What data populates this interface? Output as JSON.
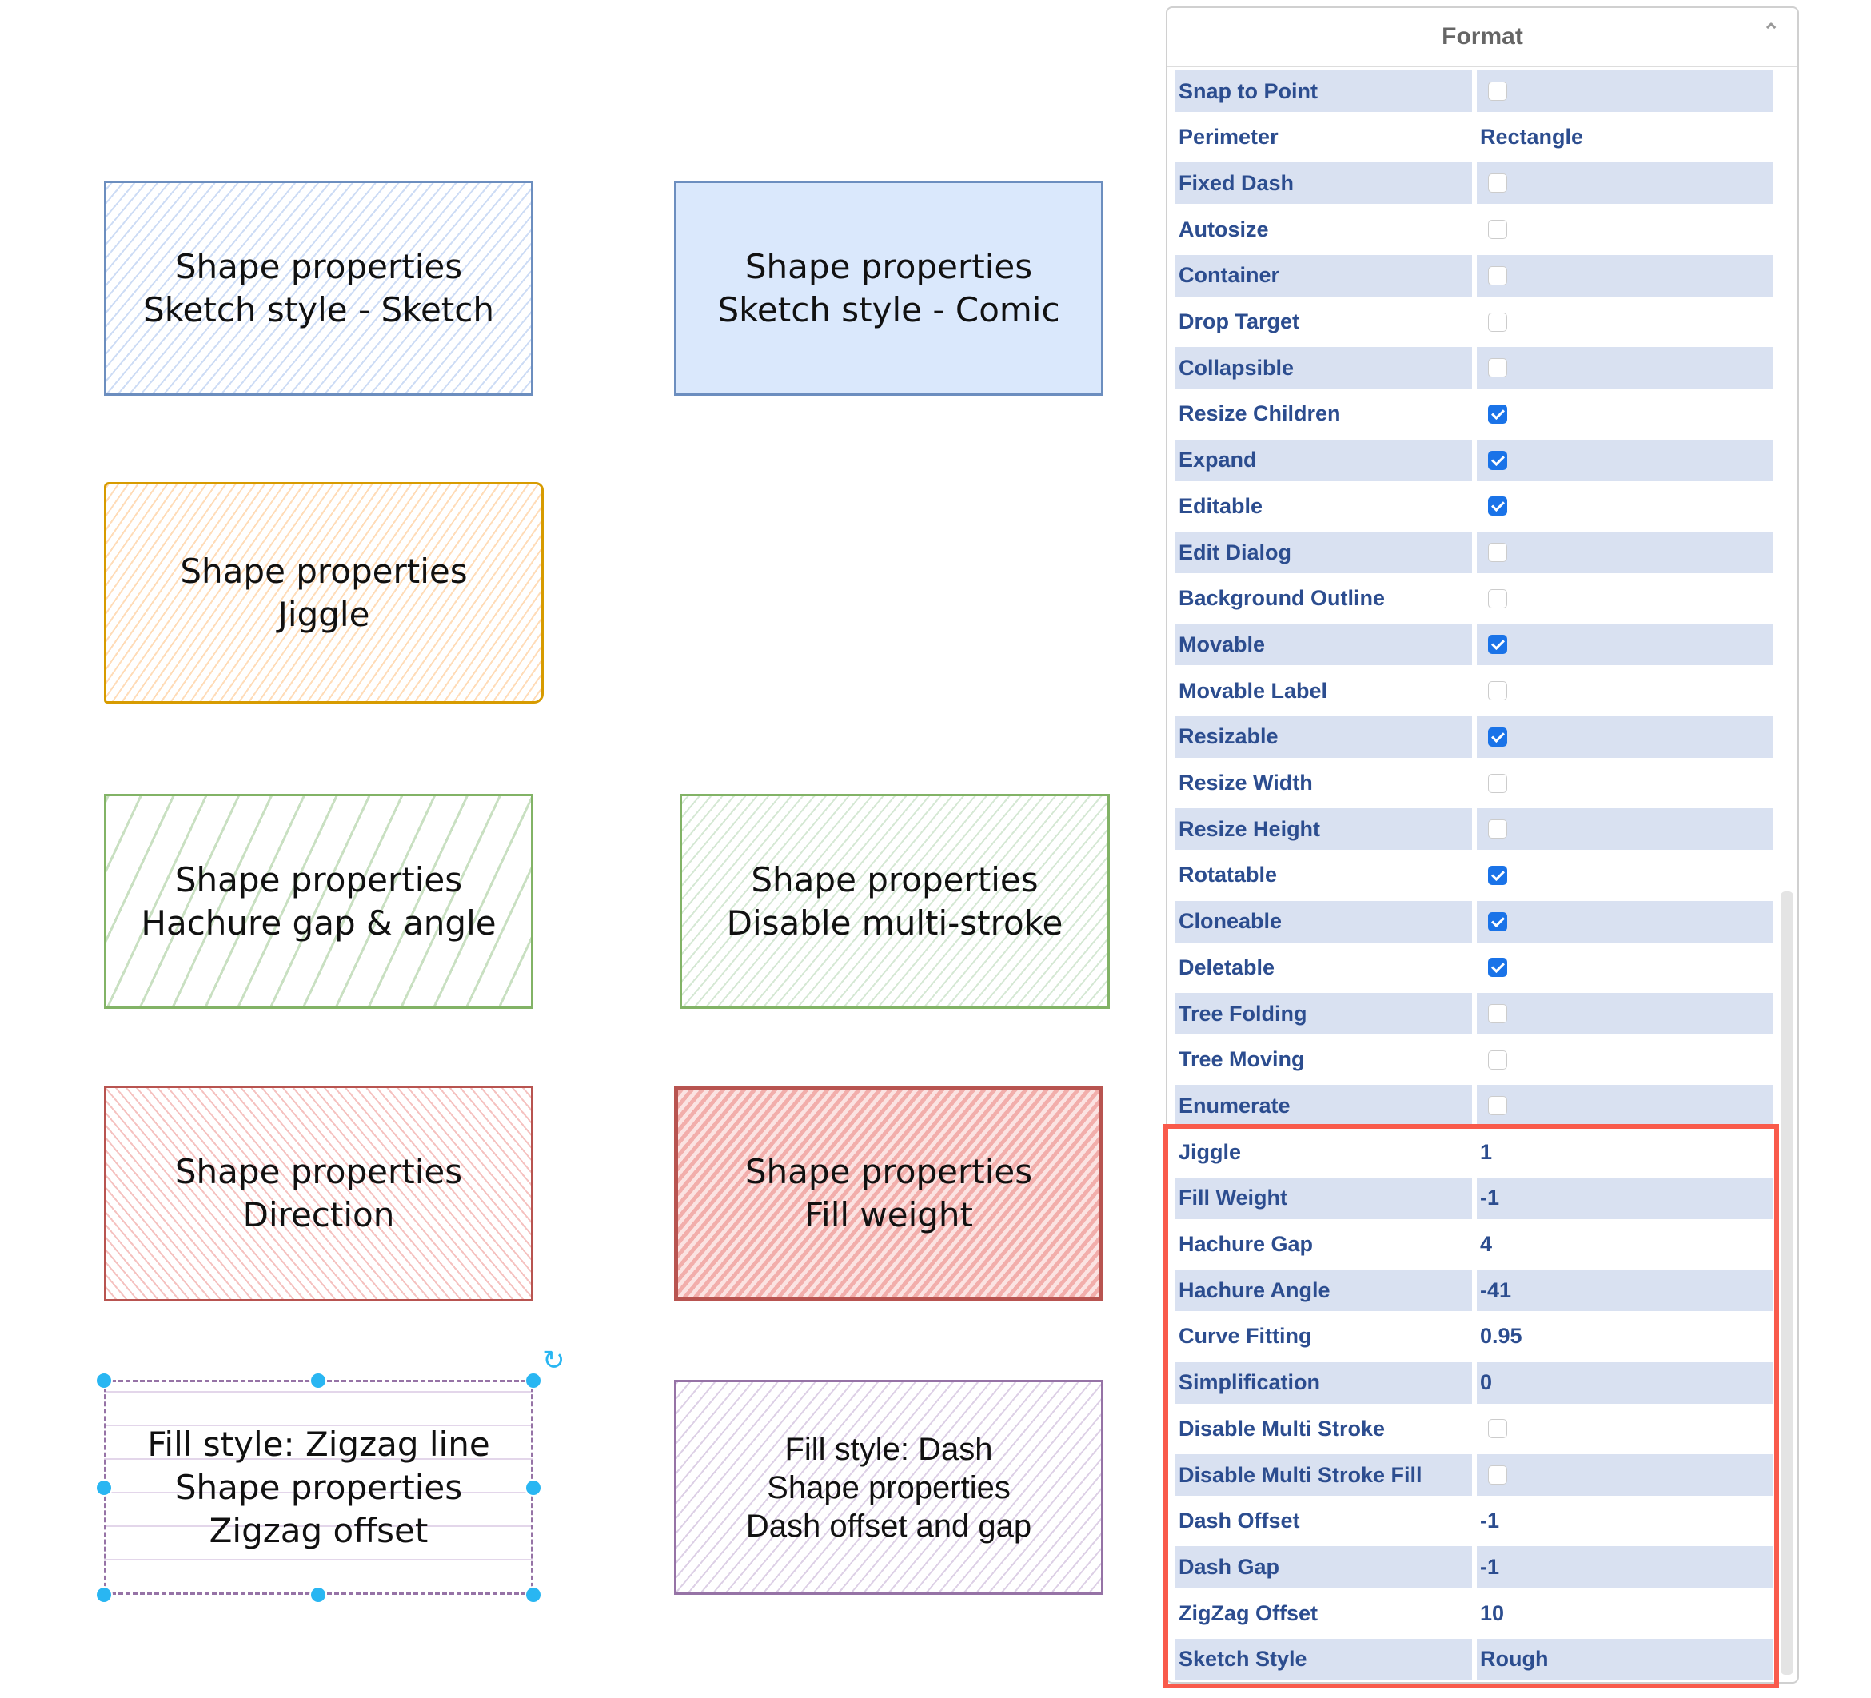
{
  "canvas": {
    "shapes": [
      {
        "text": "Shape properties\nSketch style - Sketch",
        "stroke": "#6c8ebf",
        "fill": "#dae8fc"
      },
      {
        "text": "Shape properties\nSketch style - Comic",
        "stroke": "#6c8ebf",
        "fill": "#dae8fc"
      },
      {
        "text": "Shape properties\nJiggle",
        "stroke": "#d79b00",
        "fill": "#ffe6cc"
      },
      {
        "text": "Shape properties\nHachure gap & angle",
        "stroke": "#82b366",
        "fill": "#d5e8d4"
      },
      {
        "text": "Shape properties\nDisable multi-stroke",
        "stroke": "#82b366",
        "fill": "#d5e8d4"
      },
      {
        "text": "Shape properties\nDirection",
        "stroke": "#b85450",
        "fill": "#f8cecc"
      },
      {
        "text": "Shape properties\nFill weight",
        "stroke": "#b85450",
        "fill": "#f8cecc"
      },
      {
        "text": "Fill style: Zigzag line\nShape properties\nZigzag offset",
        "stroke": "#9673a6",
        "fill": "#e1d5e7",
        "selected": true
      },
      {
        "text": "Fill style: Dash\nShape properties\nDash offset and gap",
        "stroke": "#9673a6",
        "fill": "#e1d5e7"
      }
    ],
    "selection_color": "#29b6f2"
  },
  "panel": {
    "title": "Format",
    "collapse_icon": "chevron-up-icon",
    "highlight_color": "#f95a4b",
    "rows": [
      {
        "label": "Snap to Point",
        "checkbox": false
      },
      {
        "label": "Perimeter",
        "value": "Rectangle"
      },
      {
        "label": "Fixed Dash",
        "checkbox": false
      },
      {
        "label": "Autosize",
        "checkbox": false
      },
      {
        "label": "Container",
        "checkbox": false
      },
      {
        "label": "Drop Target",
        "checkbox": false
      },
      {
        "label": "Collapsible",
        "checkbox": false
      },
      {
        "label": "Resize Children",
        "checkbox": true
      },
      {
        "label": "Expand",
        "checkbox": true
      },
      {
        "label": "Editable",
        "checkbox": true
      },
      {
        "label": "Edit Dialog",
        "checkbox": false
      },
      {
        "label": "Background Outline",
        "checkbox": false
      },
      {
        "label": "Movable",
        "checkbox": true
      },
      {
        "label": "Movable Label",
        "checkbox": false
      },
      {
        "label": "Resizable",
        "checkbox": true
      },
      {
        "label": "Resize Width",
        "checkbox": false
      },
      {
        "label": "Resize Height",
        "checkbox": false
      },
      {
        "label": "Rotatable",
        "checkbox": true
      },
      {
        "label": "Cloneable",
        "checkbox": true
      },
      {
        "label": "Deletable",
        "checkbox": true
      },
      {
        "label": "Tree Folding",
        "checkbox": false
      },
      {
        "label": "Tree Moving",
        "checkbox": false
      },
      {
        "label": "Enumerate",
        "checkbox": false
      },
      {
        "label": "Jiggle",
        "value": "1"
      },
      {
        "label": "Fill Weight",
        "value": "-1"
      },
      {
        "label": "Hachure Gap",
        "value": "4"
      },
      {
        "label": "Hachure Angle",
        "value": "-41"
      },
      {
        "label": "Curve Fitting",
        "value": "0.95"
      },
      {
        "label": "Simplification",
        "value": "0"
      },
      {
        "label": "Disable Multi Stroke",
        "checkbox": false
      },
      {
        "label": "Disable Multi Stroke Fill",
        "checkbox": false
      },
      {
        "label": "Dash Offset",
        "value": "-1"
      },
      {
        "label": "Dash Gap",
        "value": "-1"
      },
      {
        "label": "ZigZag Offset",
        "value": "10"
      },
      {
        "label": "Sketch Style",
        "value": "Rough"
      }
    ]
  }
}
